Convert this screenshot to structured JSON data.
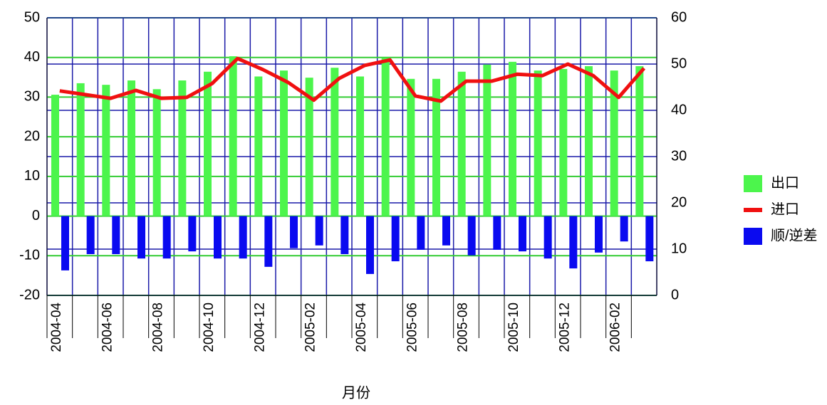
{
  "chart_data": {
    "type": "bar-line",
    "x_label": "月份",
    "categories": [
      "2004-04",
      null,
      "2004-06",
      null,
      "2004-08",
      null,
      "2004-10",
      null,
      "2004-12",
      null,
      "2005-02",
      null,
      "2005-04",
      null,
      "2005-06",
      null,
      "2005-08",
      null,
      "2005-10",
      null,
      "2005-12",
      null,
      "2006-02",
      null
    ],
    "series": [
      {
        "name": "出口",
        "color": "#4cf54c",
        "type": "bar",
        "values": [
          30.6,
          33.5,
          33.1,
          34.2,
          32.0,
          34.2,
          36.4,
          40.3,
          35.2,
          36.7,
          34.9,
          37.4,
          35.2,
          39.9,
          34.6,
          34.6,
          36.4,
          38.2,
          38.9,
          36.7,
          37.1,
          37.8,
          36.7,
          37.8
        ]
      },
      {
        "name": "进口",
        "color": "#f01010",
        "type": "line",
        "axis": "y2",
        "values": [
          44.2,
          43.4,
          42.6,
          44.3,
          42.6,
          42.8,
          45.8,
          51.2,
          48.8,
          46.0,
          42.2,
          46.9,
          49.7,
          50.9,
          43.1,
          42.0,
          46.3,
          46.3,
          47.8,
          47.5,
          50.0,
          47.5,
          42.8,
          49.1
        ]
      },
      {
        "name": "顺/逆差",
        "color": "#0a0af0",
        "type": "bar",
        "values": [
          -13.7,
          -9.6,
          -9.6,
          -10.7,
          -10.7,
          -8.9,
          -10.7,
          -10.7,
          -12.8,
          -8.1,
          -7.4,
          -9.6,
          -14.6,
          -11.4,
          -8.5,
          -7.4,
          -9.9,
          -8.5,
          -8.9,
          -10.7,
          -13.2,
          -9.2,
          -6.4,
          -11.4
        ]
      }
    ],
    "ylim": [
      -20,
      50
    ],
    "yticks": [
      -20,
      -10,
      0,
      10,
      20,
      30,
      40,
      50
    ],
    "y2lim": [
      0,
      60
    ],
    "y2ticks": [
      0,
      10,
      20,
      30,
      40,
      50,
      60
    ],
    "grid": true,
    "legend": "right"
  }
}
